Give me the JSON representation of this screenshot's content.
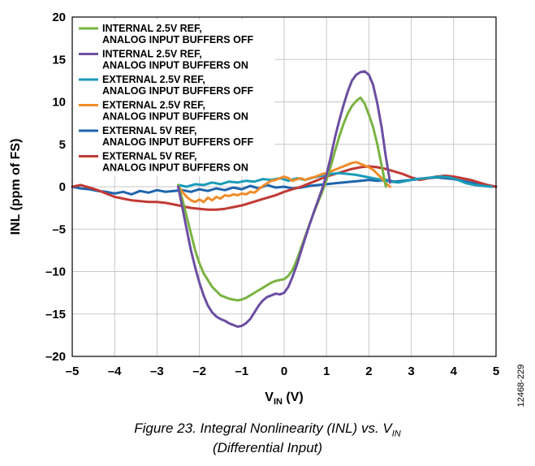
{
  "chart_data": {
    "type": "line",
    "title": "",
    "xlabel_main": "V",
    "xlabel_sub": "IN",
    "xlabel_unit": " (V)",
    "ylabel": "INL (ppm of FS)",
    "xlim": [
      -5,
      5
    ],
    "ylim": [
      -20,
      20
    ],
    "x_ticks": [
      -5,
      -4,
      -3,
      -2,
      -1,
      0,
      1,
      2,
      3,
      4,
      5
    ],
    "y_ticks": [
      20,
      15,
      10,
      5,
      0,
      -5,
      -10,
      -15,
      -20
    ],
    "x_tick_labels": [
      "–5",
      "–4",
      "–3",
      "–2",
      "–1",
      "0",
      "1",
      "2",
      "3",
      "4",
      "5"
    ],
    "y_tick_labels": [
      "20",
      "15",
      "10",
      "5",
      "0",
      "–5",
      "–10",
      "–15",
      "–20"
    ],
    "grid": true,
    "legend_position": "top-left",
    "side_id": "12468-229",
    "series": [
      {
        "name_line1": "INTERNAL 2.5V REF,",
        "name_line2": "ANALOG INPUT BUFFERS OFF",
        "color": "#7ab342",
        "x": [
          -2.5,
          -2.4,
          -2.3,
          -2.2,
          -2.1,
          -2.0,
          -1.9,
          -1.8,
          -1.7,
          -1.6,
          -1.5,
          -1.4,
          -1.3,
          -1.2,
          -1.1,
          -1.0,
          -0.9,
          -0.8,
          -0.7,
          -0.6,
          -0.5,
          -0.4,
          -0.3,
          -0.2,
          -0.1,
          0.0,
          0.1,
          0.2,
          0.3,
          0.4,
          0.5,
          0.6,
          0.7,
          0.8,
          0.9,
          1.0,
          1.1,
          1.2,
          1.3,
          1.4,
          1.5,
          1.6,
          1.7,
          1.8,
          1.9,
          2.0,
          2.1,
          2.2,
          2.3,
          2.4
        ],
        "y": [
          0.2,
          -1.5,
          -3.5,
          -5.5,
          -7.5,
          -9.0,
          -10.2,
          -11.0,
          -11.8,
          -12.3,
          -12.8,
          -13.0,
          -13.2,
          -13.3,
          -13.4,
          -13.3,
          -13.1,
          -12.8,
          -12.5,
          -12.2,
          -11.9,
          -11.6,
          -11.3,
          -11.1,
          -11.0,
          -10.9,
          -10.5,
          -9.8,
          -8.6,
          -7.2,
          -5.8,
          -4.4,
          -3.1,
          -1.8,
          -0.6,
          0.8,
          2.4,
          4.2,
          5.9,
          7.4,
          8.6,
          9.5,
          10.1,
          10.5,
          9.8,
          8.5,
          7.0,
          5.0,
          2.5,
          0.0
        ]
      },
      {
        "name_line1": "INTERNAL 2.5V  REF,",
        "name_line2": "ANALOG INPUT BUFFERS ON",
        "color": "#6c4ea1",
        "x": [
          -2.5,
          -2.4,
          -2.3,
          -2.2,
          -2.1,
          -2.0,
          -1.9,
          -1.8,
          -1.7,
          -1.6,
          -1.5,
          -1.4,
          -1.3,
          -1.2,
          -1.1,
          -1.0,
          -0.9,
          -0.8,
          -0.7,
          -0.6,
          -0.5,
          -0.4,
          -0.3,
          -0.2,
          -0.1,
          0.0,
          0.1,
          0.2,
          0.3,
          0.4,
          0.5,
          0.6,
          0.7,
          0.8,
          0.9,
          1.0,
          1.1,
          1.2,
          1.3,
          1.4,
          1.5,
          1.6,
          1.7,
          1.8,
          1.9,
          2.0,
          2.1,
          2.2,
          2.3,
          2.4,
          2.5
        ],
        "y": [
          0.0,
          -2.5,
          -5.0,
          -7.5,
          -9.5,
          -11.3,
          -12.8,
          -14.0,
          -14.8,
          -15.3,
          -15.6,
          -15.8,
          -16.1,
          -16.3,
          -16.5,
          -16.4,
          -16.1,
          -15.6,
          -14.8,
          -14.0,
          -13.4,
          -13.0,
          -12.8,
          -12.6,
          -12.7,
          -12.5,
          -11.8,
          -10.6,
          -9.2,
          -7.6,
          -6.0,
          -4.5,
          -3.0,
          -1.6,
          -0.2,
          1.4,
          3.5,
          5.8,
          7.8,
          9.6,
          11.2,
          12.5,
          13.2,
          13.5,
          13.6,
          13.2,
          12.0,
          9.8,
          7.0,
          3.5,
          0.5
        ]
      },
      {
        "name_line1": "EXTERNAL 2.5V REF,",
        "name_line2": "ANALOG INPUT BUFFERS OFF",
        "color": "#1b9bb8",
        "x": [
          -2.5,
          -2.3,
          -2.1,
          -1.9,
          -1.7,
          -1.5,
          -1.3,
          -1.1,
          -0.9,
          -0.7,
          -0.5,
          -0.3,
          -0.1,
          0.1,
          0.3,
          0.5,
          0.7,
          0.9,
          1.1,
          1.3,
          1.5,
          1.7,
          1.9,
          2.1,
          2.3,
          2.5,
          2.7,
          2.9,
          3.1,
          3.3,
          3.5,
          3.7,
          3.9,
          4.1,
          4.3,
          4.5,
          4.7,
          4.9
        ],
        "y": [
          0.2,
          0.0,
          0.3,
          0.2,
          0.5,
          0.3,
          0.6,
          0.5,
          0.7,
          0.6,
          0.9,
          0.8,
          1.0,
          0.7,
          1.0,
          0.8,
          1.1,
          1.3,
          1.5,
          1.6,
          1.5,
          1.4,
          1.2,
          1.0,
          0.8,
          0.6,
          0.5,
          0.7,
          0.9,
          1.0,
          1.1,
          1.2,
          1.1,
          0.8,
          0.4,
          0.2,
          0.1,
          0.0
        ]
      },
      {
        "name_line1": "EXTERNAL 2.5V REF,",
        "name_line2": "ANALOG INPUT BUFFERS ON",
        "color": "#f08c2a",
        "x": [
          -2.5,
          -2.4,
          -2.3,
          -2.2,
          -2.1,
          -2.0,
          -1.9,
          -1.8,
          -1.7,
          -1.6,
          -1.5,
          -1.4,
          -1.3,
          -1.2,
          -1.1,
          -1.0,
          -0.9,
          -0.8,
          -0.7,
          -0.6,
          -0.5,
          -0.4,
          -0.3,
          -0.2,
          -0.1,
          0.0,
          0.1,
          0.2,
          0.3,
          0.4,
          0.5,
          0.6,
          0.7,
          0.8,
          0.9,
          1.0,
          1.1,
          1.2,
          1.3,
          1.4,
          1.5,
          1.6,
          1.7,
          1.8,
          1.9,
          2.0,
          2.1,
          2.2,
          2.3,
          2.4,
          2.5
        ],
        "y": [
          0.1,
          -0.6,
          -1.2,
          -1.6,
          -1.8,
          -1.5,
          -1.8,
          -1.3,
          -1.6,
          -1.2,
          -1.4,
          -1.0,
          -1.1,
          -0.9,
          -1.0,
          -0.8,
          -0.9,
          -0.6,
          -0.7,
          -0.3,
          0.1,
          0.4,
          0.7,
          0.8,
          1.0,
          1.2,
          1.0,
          0.7,
          0.9,
          1.0,
          0.8,
          1.0,
          1.1,
          1.3,
          1.5,
          1.6,
          1.8,
          2.0,
          2.2,
          2.4,
          2.6,
          2.8,
          2.9,
          2.7,
          2.5,
          2.3,
          2.0,
          1.5,
          1.0,
          0.4,
          0.0
        ]
      },
      {
        "name_line1": "EXTERNAL 5V REF,",
        "name_line2": "ANALOG INPUT BUFFERS OFF",
        "color": "#1f64ad",
        "x": [
          -5.0,
          -4.8,
          -4.6,
          -4.4,
          -4.2,
          -4.0,
          -3.8,
          -3.6,
          -3.4,
          -3.2,
          -3.0,
          -2.8,
          -2.6,
          -2.4,
          -2.2,
          -2.0,
          -1.8,
          -1.6,
          -1.4,
          -1.2,
          -1.0,
          -0.8,
          -0.6,
          -0.4,
          -0.2,
          0.0,
          0.2,
          0.4,
          0.6,
          0.8,
          1.0,
          1.2,
          1.4,
          1.6,
          1.8,
          2.0,
          2.2,
          2.4,
          2.6,
          2.8,
          3.0,
          3.2,
          3.4,
          3.6,
          3.8,
          4.0,
          4.2,
          4.4,
          4.6,
          4.8,
          5.0
        ],
        "y": [
          0.0,
          -0.2,
          -0.3,
          -0.5,
          -0.6,
          -0.8,
          -0.6,
          -0.9,
          -0.5,
          -0.7,
          -0.4,
          -0.6,
          -0.5,
          -0.4,
          -0.6,
          -0.3,
          -0.5,
          -0.2,
          -0.4,
          -0.1,
          -0.3,
          0.1,
          -0.2,
          0.2,
          -0.1,
          0.0,
          -0.2,
          -0.1,
          0.1,
          0.2,
          0.3,
          0.4,
          0.5,
          0.6,
          0.7,
          0.8,
          0.7,
          0.8,
          0.6,
          0.7,
          0.8,
          0.9,
          1.0,
          1.1,
          1.0,
          0.9,
          0.7,
          0.5,
          0.3,
          0.1,
          0.0
        ]
      },
      {
        "name_line1": "EXTERNAL 5V REF,",
        "name_line2": "ANALOG INPUT BUFFERS ON",
        "color": "#c03a35",
        "x": [
          -5.0,
          -4.8,
          -4.6,
          -4.4,
          -4.2,
          -4.0,
          -3.8,
          -3.6,
          -3.4,
          -3.2,
          -3.0,
          -2.8,
          -2.6,
          -2.4,
          -2.2,
          -2.0,
          -1.8,
          -1.6,
          -1.4,
          -1.2,
          -1.0,
          -0.8,
          -0.6,
          -0.4,
          -0.2,
          0.0,
          0.2,
          0.4,
          0.6,
          0.8,
          1.0,
          1.2,
          1.4,
          1.6,
          1.8,
          2.0,
          2.2,
          2.4,
          2.6,
          2.8,
          3.0,
          3.2,
          3.4,
          3.6,
          3.8,
          4.0,
          4.2,
          4.4,
          4.6,
          4.8,
          5.0
        ],
        "y": [
          0.0,
          0.2,
          -0.1,
          -0.4,
          -0.8,
          -1.2,
          -1.4,
          -1.6,
          -1.7,
          -1.8,
          -1.8,
          -1.9,
          -2.1,
          -2.3,
          -2.5,
          -2.6,
          -2.7,
          -2.7,
          -2.6,
          -2.4,
          -2.2,
          -1.9,
          -1.6,
          -1.3,
          -1.0,
          -0.6,
          -0.3,
          0.0,
          0.4,
          0.8,
          1.2,
          1.5,
          1.8,
          2.1,
          2.3,
          2.4,
          2.3,
          2.1,
          1.8,
          1.5,
          1.1,
          0.8,
          1.0,
          1.2,
          1.3,
          1.2,
          1.0,
          0.8,
          0.5,
          0.2,
          0.0
        ]
      }
    ]
  },
  "caption": {
    "line1_main": "Figure 23. Integral Nonlinearity (INL) vs. V",
    "line1_sub": "IN",
    "line2": "(Differential Input)"
  }
}
